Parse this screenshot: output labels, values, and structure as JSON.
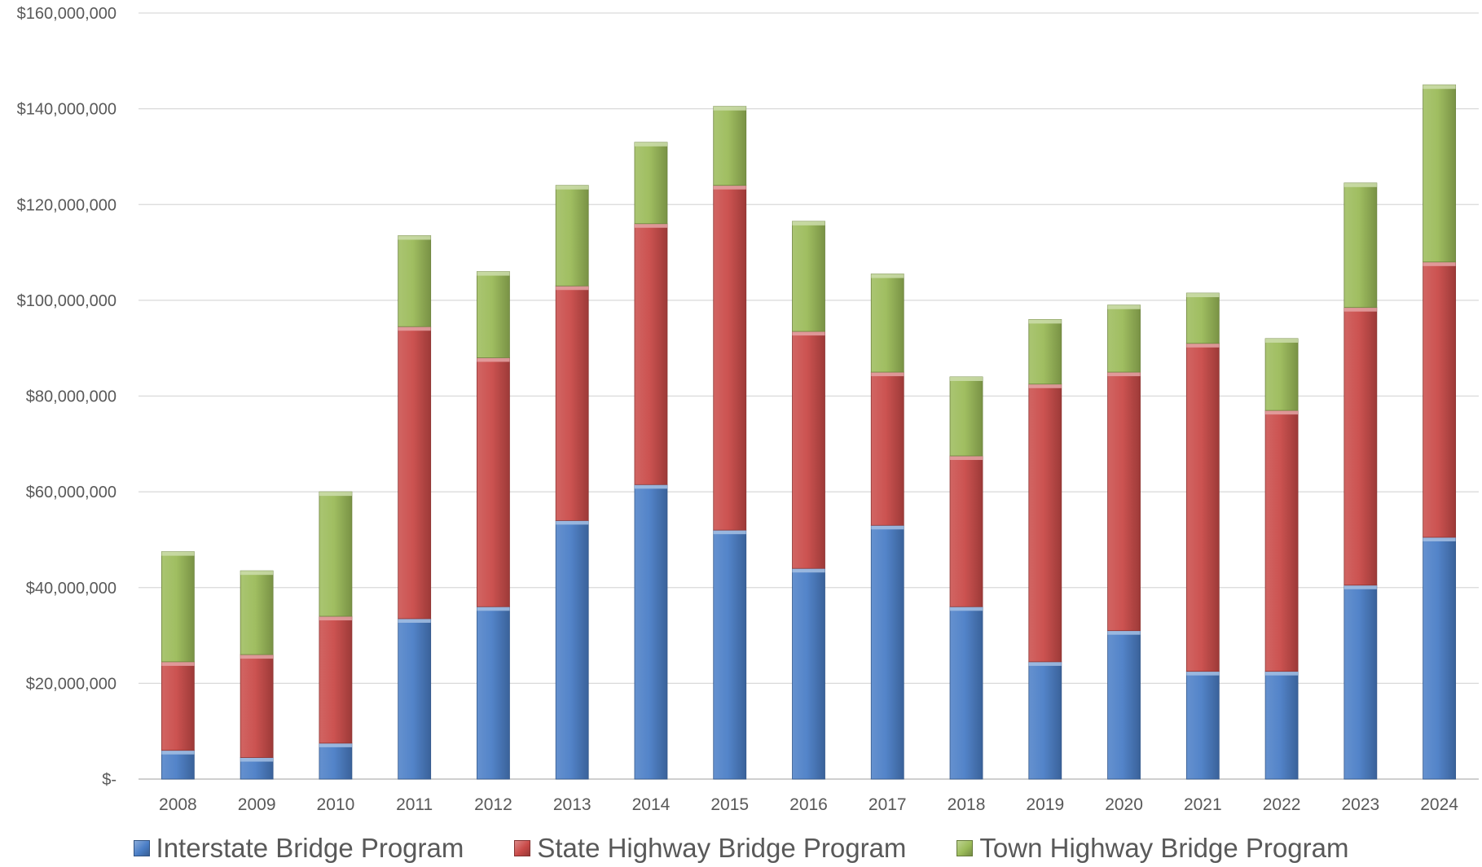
{
  "chart_data": {
    "type": "bar",
    "stacked": true,
    "categories": [
      "2008",
      "2009",
      "2010",
      "2011",
      "2012",
      "2013",
      "2014",
      "2015",
      "2016",
      "2017",
      "2018",
      "2019",
      "2020",
      "2021",
      "2022",
      "2023",
      "2024"
    ],
    "series": [
      {
        "name": "Interstate Bridge Program",
        "color": "#4A7EC6",
        "values": [
          6000000,
          4500000,
          7500000,
          33500000,
          36000000,
          54000000,
          61500000,
          52000000,
          44000000,
          53000000,
          36000000,
          24500000,
          31000000,
          22500000,
          22500000,
          40500000,
          50500000
        ]
      },
      {
        "name": "State Highway Bridge Program",
        "color": "#C94A48",
        "values": [
          18500000,
          21500000,
          26500000,
          61000000,
          52000000,
          49000000,
          54500000,
          72000000,
          49500000,
          32000000,
          31500000,
          58000000,
          54000000,
          68500000,
          54500000,
          58000000,
          57500000
        ]
      },
      {
        "name": "Town Highway Bridge Program",
        "color": "#9BBB59",
        "values": [
          23000000,
          17500000,
          26000000,
          19000000,
          18000000,
          21000000,
          17000000,
          16500000,
          23000000,
          20500000,
          16500000,
          13500000,
          14000000,
          10500000,
          15000000,
          26000000,
          37000000
        ]
      }
    ],
    "yticks": [
      {
        "value": 0,
        "label": "$-"
      },
      {
        "value": 20000000,
        "label": "$20,000,000"
      },
      {
        "value": 40000000,
        "label": "$40,000,000"
      },
      {
        "value": 60000000,
        "label": "$60,000,000"
      },
      {
        "value": 80000000,
        "label": "$80,000,000"
      },
      {
        "value": 100000000,
        "label": "$100,000,000"
      },
      {
        "value": 120000000,
        "label": "$120,000,000"
      },
      {
        "value": 140000000,
        "label": "$140,000,000"
      },
      {
        "value": 160000000,
        "label": "$160,000,000"
      }
    ],
    "ylim": [
      0,
      160000000
    ],
    "grid": true,
    "legend_position": "bottom",
    "title": "",
    "xlabel": "",
    "ylabel": ""
  }
}
